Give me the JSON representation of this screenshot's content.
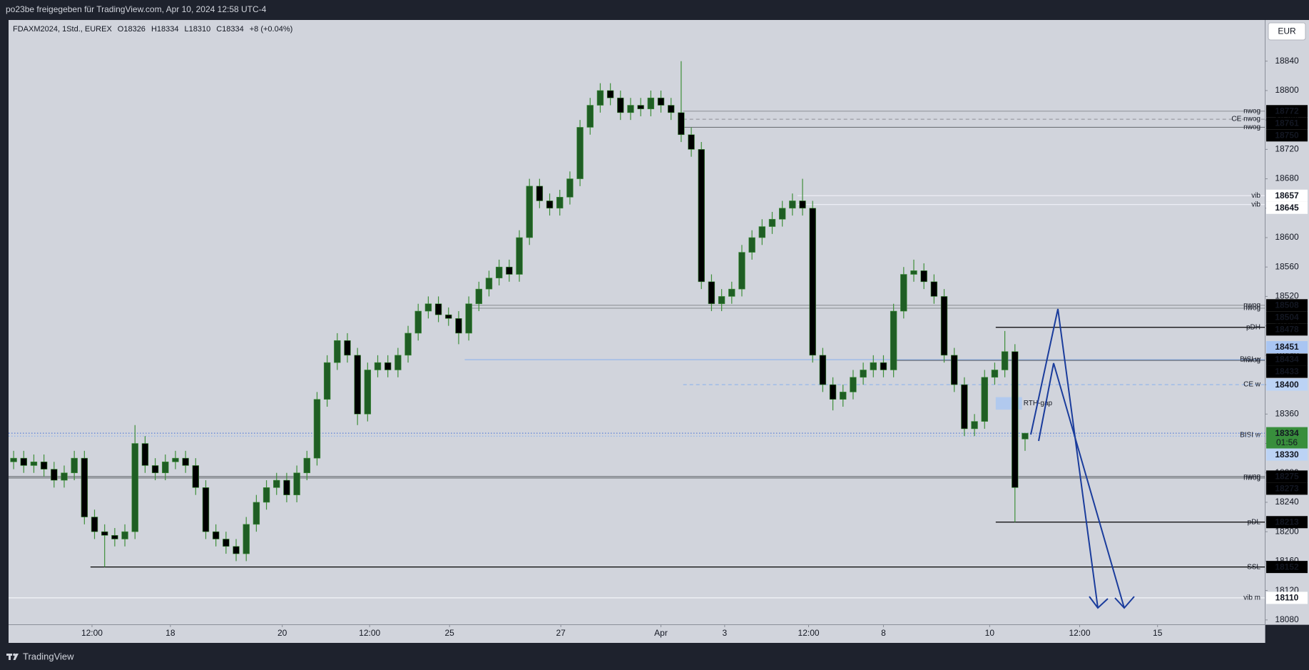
{
  "header": {
    "title": "po23be freigegeben für TradingView.com, Apr 10, 2024 12:58 UTC-4"
  },
  "footer": {
    "brand": "TradingView"
  },
  "chart_data": {
    "type": "candlestick",
    "legend": {
      "symbol": "FDAXM2024, 1Std., EUREX",
      "open": "O18326",
      "high": "H18334",
      "low": "L18310",
      "close": "C18334",
      "change": "+8 (+0.04%)"
    },
    "currency": "EUR",
    "open": [
      18295,
      18300,
      18290,
      18295,
      18285,
      18270,
      18280,
      18300,
      18220,
      18200,
      18195,
      18190,
      18200,
      18320,
      18290,
      18280,
      18295,
      18300,
      18290,
      18260,
      18200,
      18190,
      18180,
      18170,
      18210,
      18240,
      18260,
      18270,
      18250,
      18280,
      18300,
      18380,
      18430,
      18460,
      18440,
      18360,
      18420,
      18430,
      18420,
      18440,
      18470,
      18500,
      18510,
      18495,
      18490,
      18470,
      18510,
      18530,
      18545,
      18560,
      18550,
      18600,
      18670,
      18650,
      18640,
      18655,
      18680,
      18750,
      18780,
      18800,
      18790,
      18770,
      18780,
      18775,
      18790,
      18780,
      18770,
      18740,
      18720,
      18540,
      18510,
      18520,
      18530,
      18580,
      18600,
      18615,
      18625,
      18640,
      18650,
      18640,
      18440,
      18400,
      18380,
      18390,
      18410,
      18420,
      18430,
      18420,
      18500,
      18550,
      18555,
      18540,
      18520,
      18440,
      18400,
      18340,
      18350,
      18410,
      18420,
      18445,
      18326
    ],
    "high": [
      18310,
      18310,
      18305,
      18305,
      18295,
      18290,
      18310,
      18310,
      18230,
      18210,
      18205,
      18210,
      18345,
      18330,
      18300,
      18305,
      18310,
      18310,
      18300,
      18270,
      18210,
      18200,
      18190,
      18220,
      18250,
      18270,
      18280,
      18280,
      18290,
      18310,
      18390,
      18440,
      18470,
      18470,
      18450,
      18430,
      18440,
      18440,
      18450,
      18480,
      18510,
      18520,
      18520,
      18505,
      18500,
      18520,
      18540,
      18555,
      18570,
      18570,
      18610,
      18680,
      18680,
      18660,
      18665,
      18690,
      18760,
      18790,
      18810,
      18810,
      18800,
      18790,
      18790,
      18800,
      18800,
      18790,
      18840,
      18750,
      18730,
      18550,
      18530,
      18540,
      18590,
      18610,
      18625,
      18635,
      18650,
      18660,
      18680,
      18650,
      18450,
      18410,
      18400,
      18420,
      18430,
      18440,
      18440,
      18510,
      18560,
      18570,
      18565,
      18550,
      18530,
      18450,
      18410,
      18360,
      18420,
      18430,
      18473,
      18455,
      18334
    ],
    "low": [
      18285,
      18280,
      18280,
      18275,
      18260,
      18260,
      18270,
      18210,
      18190,
      18152,
      18180,
      18180,
      18190,
      18280,
      18270,
      18270,
      18285,
      18280,
      18250,
      18190,
      18180,
      18170,
      18160,
      18160,
      18200,
      18230,
      18250,
      18240,
      18240,
      18270,
      18290,
      18370,
      18420,
      18430,
      18345,
      18350,
      18410,
      18410,
      18410,
      18430,
      18460,
      18490,
      18485,
      18480,
      18455,
      18460,
      18500,
      18520,
      18535,
      18540,
      18540,
      18590,
      18640,
      18630,
      18630,
      18645,
      18670,
      18740,
      18770,
      18780,
      18760,
      18760,
      18765,
      18765,
      18770,
      18760,
      18730,
      18710,
      18530,
      18500,
      18500,
      18510,
      18520,
      18570,
      18590,
      18605,
      18615,
      18630,
      18630,
      18430,
      18390,
      18365,
      18370,
      18380,
      18400,
      18410,
      18410,
      18410,
      18490,
      18540,
      18530,
      18510,
      18430,
      18390,
      18330,
      18330,
      18340,
      18400,
      18410,
      18213,
      18310
    ],
    "close": [
      18300,
      18290,
      18295,
      18285,
      18270,
      18280,
      18300,
      18220,
      18200,
      18195,
      18190,
      18200,
      18320,
      18290,
      18280,
      18295,
      18300,
      18290,
      18260,
      18200,
      18190,
      18180,
      18170,
      18210,
      18240,
      18260,
      18270,
      18250,
      18280,
      18300,
      18380,
      18430,
      18460,
      18440,
      18360,
      18420,
      18430,
      18420,
      18440,
      18470,
      18500,
      18510,
      18495,
      18490,
      18470,
      18510,
      18530,
      18545,
      18560,
      18550,
      18600,
      18670,
      18650,
      18640,
      18655,
      18680,
      18750,
      18780,
      18800,
      18790,
      18770,
      18780,
      18775,
      18790,
      18780,
      18770,
      18740,
      18720,
      18540,
      18510,
      18520,
      18530,
      18580,
      18600,
      18615,
      18625,
      18640,
      18650,
      18640,
      18440,
      18400,
      18380,
      18390,
      18410,
      18420,
      18430,
      18420,
      18500,
      18550,
      18555,
      18540,
      18520,
      18440,
      18400,
      18340,
      18350,
      18410,
      18420,
      18445,
      18260,
      18334
    ],
    "up_color": "#1f5e24",
    "down_color": "#000000",
    "wick_color": "#3f8f3a",
    "xlim": [
      0,
      124.2
    ],
    "xticks": [
      {
        "value": 8.25,
        "label": "12:00"
      },
      {
        "value": 16.0,
        "label": "18"
      },
      {
        "value": 27.06,
        "label": "20"
      },
      {
        "value": 35.7,
        "label": "12:00"
      },
      {
        "value": 43.6,
        "label": "25"
      },
      {
        "value": 54.6,
        "label": "27"
      },
      {
        "value": 64.5,
        "label": "Apr"
      },
      {
        "value": 70.8,
        "label": "3"
      },
      {
        "value": 79.1,
        "label": "12:00"
      },
      {
        "value": 86.5,
        "label": "8"
      },
      {
        "value": 97.0,
        "label": "10"
      },
      {
        "value": 105.9,
        "label": "12:00"
      },
      {
        "value": 113.6,
        "label": "15"
      }
    ],
    "ylim": [
      18074,
      18896
    ],
    "yticks": [
      18080,
      18120,
      18160,
      18200,
      18240,
      18280,
      18320,
      18360,
      18400,
      18440,
      18480,
      18520,
      18560,
      18600,
      18640,
      18680,
      18720,
      18760,
      18800,
      18840
    ],
    "levels": [
      {
        "value": 18772,
        "label": "nwog",
        "color": "#9a9ca3",
        "label_color": "#8a8d96",
        "style": "solid",
        "start": 66.7,
        "tag": "#000000",
        "tag_text": "#ffffff"
      },
      {
        "value": 18761,
        "label": "CE nwog",
        "color": "#9a9ca3",
        "label_color": "#8a8d96",
        "style": "dashed",
        "start": 66.7,
        "tag": "#000000",
        "tag_text": "#ffffff"
      },
      {
        "value": 18750,
        "label": "nwog",
        "color": "#707379",
        "label_color": "#8a8d96",
        "style": "solid",
        "start": 66.7,
        "tag": "#000000",
        "tag_text": "#ffffff"
      },
      {
        "value": 18657,
        "label": "vib",
        "color": "#eceef6",
        "label_color": "#5b84ee",
        "style": "solid",
        "start": 78,
        "tag": "#ffffff",
        "tag_text": "#000000"
      },
      {
        "value": 18645,
        "label": "vib",
        "color": "#eceef6",
        "label_color": "#5b84ee",
        "style": "solid",
        "start": 78,
        "tag": "#ffffff",
        "tag_text": "#000000"
      },
      {
        "value": 18508,
        "label": "nwog",
        "color": "#909399",
        "label_color": "#8a8d96",
        "style": "solid",
        "start": 45.5,
        "tag": "#000000",
        "tag_text": "#ffffff"
      },
      {
        "value": 18504,
        "label": "nwog",
        "color": "#909399",
        "label_color": "#8a8d96",
        "style": "solid",
        "start": 45.5,
        "tag": "#000000",
        "tag_text": "#ffffff"
      },
      {
        "value": 18478,
        "label": "pDH",
        "color": "#000000",
        "label_color": "#000000",
        "style": "solid",
        "start": 97.6,
        "tag": "#000000",
        "tag_text": "#ffffff"
      },
      {
        "value": 18451,
        "color": "#90b4ec",
        "style": "none",
        "start": 97.6,
        "tag": "#a9c5f2",
        "tag_text": "#000000"
      },
      {
        "value": 18434,
        "label": "BISI w",
        "color": "#90b4ec",
        "label_color": "#fff0a8",
        "style": "solid",
        "start": 45.1,
        "tag": "#000000",
        "tag_text": "#ffffff"
      },
      {
        "value": 18433,
        "label": "nwog",
        "color": "#5f6268",
        "label_color": "#3c3f45",
        "style": "solid",
        "start": 87.5,
        "tag": "#000000",
        "tag_text": "#ffffff"
      },
      {
        "value": 18400,
        "label": "CE w",
        "color": "#90b4ec",
        "label_color": "#f3e58f",
        "style": "dashed",
        "start": 66.7,
        "tag": "#bcd3f5",
        "tag_text": "#000000"
      },
      {
        "value": 18334,
        "label": "BISI w",
        "color": "#5b7fd6",
        "label_color": "#f3e58f",
        "style": "dotted",
        "start": 0,
        "tag": "#388e3c",
        "tag_text": "#ffffff",
        "countdown": "01:56"
      },
      {
        "value": 18330,
        "color": "#90b4ec",
        "style": "dotted",
        "start": 0,
        "tag": "#bcd3f5",
        "tag_text": "#000000"
      },
      {
        "value": 18275,
        "label": "nwog",
        "color": "#707379",
        "label_color": "#8a8d96",
        "style": "solid",
        "start": 0,
        "tag": "#000000",
        "tag_text": "#ffffff"
      },
      {
        "value": 18273,
        "label": "nwog",
        "color": "#707379",
        "label_color": "#8a8d96",
        "style": "solid",
        "start": 0,
        "tag": "#000000",
        "tag_text": "#ffffff"
      },
      {
        "value": 18213,
        "label": "pDL",
        "color": "#000000",
        "label_color": "#000000",
        "style": "solid",
        "start": 97.6,
        "tag": "#000000",
        "tag_text": "#ffffff"
      },
      {
        "value": 18152,
        "label": "SSL",
        "color": "#000000",
        "label_color": "#000000",
        "style": "solid",
        "start": 8.1,
        "tag": "#000000",
        "tag_text": "#ffffff"
      },
      {
        "value": 18110,
        "label": "vib m",
        "color": "#f4f5fa",
        "label_color": "#5b84ee",
        "style": "solid",
        "start": 0,
        "tag": "#ffffff",
        "tag_text": "#000000"
      }
    ],
    "rth_gap": {
      "label": "RTH-gap",
      "top": 18383,
      "bottom": 18366,
      "start": 97.6,
      "end": 100.2,
      "color": "#a9c5f2"
    }
  }
}
